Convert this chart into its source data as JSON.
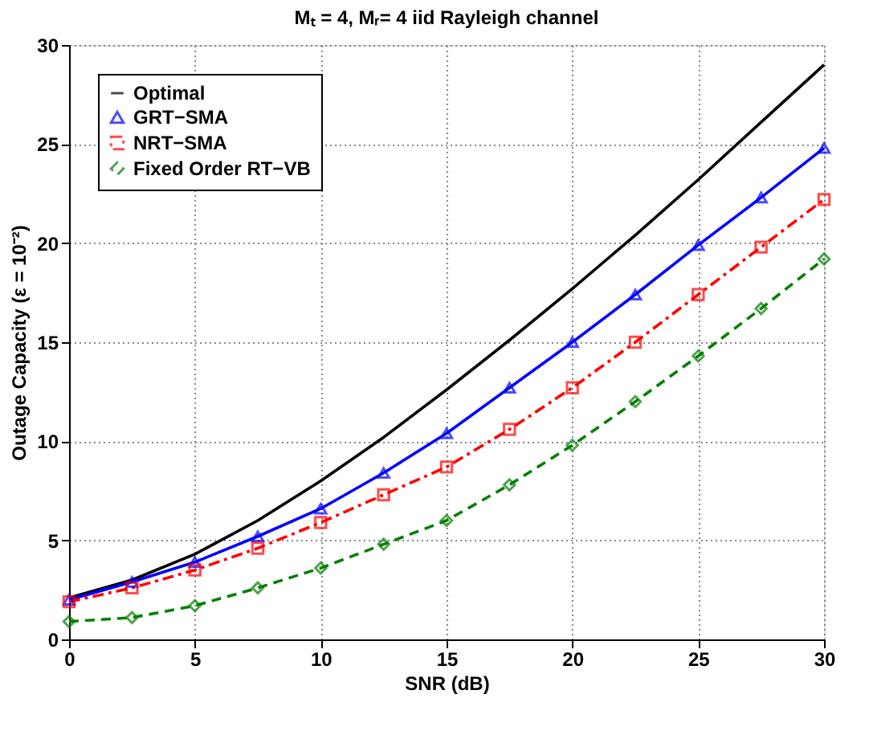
{
  "chart_data": {
    "type": "line",
    "title": "Mₜ = 4, Mᵣ= 4 iid Rayleigh channel",
    "xlabel": "SNR (dB)",
    "ylabel": "Outage Capacity (ε = 10⁻²)",
    "x": [
      0,
      2.5,
      5,
      7.5,
      10,
      12.5,
      15,
      17.5,
      20,
      22.5,
      25,
      27.5,
      30
    ],
    "series": [
      {
        "name": "Optimal",
        "color": "#000000",
        "marker": "none",
        "line_style": "solid",
        "values": [
          2.1,
          3.0,
          4.3,
          6.0,
          8.0,
          10.2,
          12.6,
          15.1,
          17.7,
          20.4,
          23.2,
          26.1,
          29.0
        ]
      },
      {
        "name": "GRT−SMA",
        "color": "#0000ff",
        "marker": "triangle",
        "line_style": "solid",
        "values": [
          2.0,
          2.9,
          3.9,
          5.2,
          6.6,
          8.4,
          10.4,
          12.7,
          15.0,
          17.4,
          19.9,
          22.3,
          24.8
        ]
      },
      {
        "name": "NRT−SMA",
        "color": "#ff0000",
        "marker": "square",
        "line_style": "dashdot",
        "values": [
          1.9,
          2.6,
          3.5,
          4.6,
          5.9,
          7.3,
          8.7,
          10.6,
          12.7,
          15.0,
          17.4,
          19.8,
          22.2
        ]
      },
      {
        "name": "Fixed Order RT−VB",
        "color": "#008000",
        "marker": "diamond",
        "line_style": "dashed",
        "values": [
          0.9,
          1.1,
          1.7,
          2.6,
          3.6,
          4.8,
          6.0,
          7.8,
          9.8,
          12.0,
          14.3,
          16.7,
          19.2
        ]
      }
    ],
    "xlim": [
      0,
      30
    ],
    "ylim": [
      0,
      30
    ],
    "xticks": [
      0,
      5,
      10,
      15,
      20,
      25,
      30
    ],
    "yticks": [
      0,
      5,
      10,
      15,
      20,
      25,
      30
    ],
    "grid": true,
    "legend": "top left"
  }
}
